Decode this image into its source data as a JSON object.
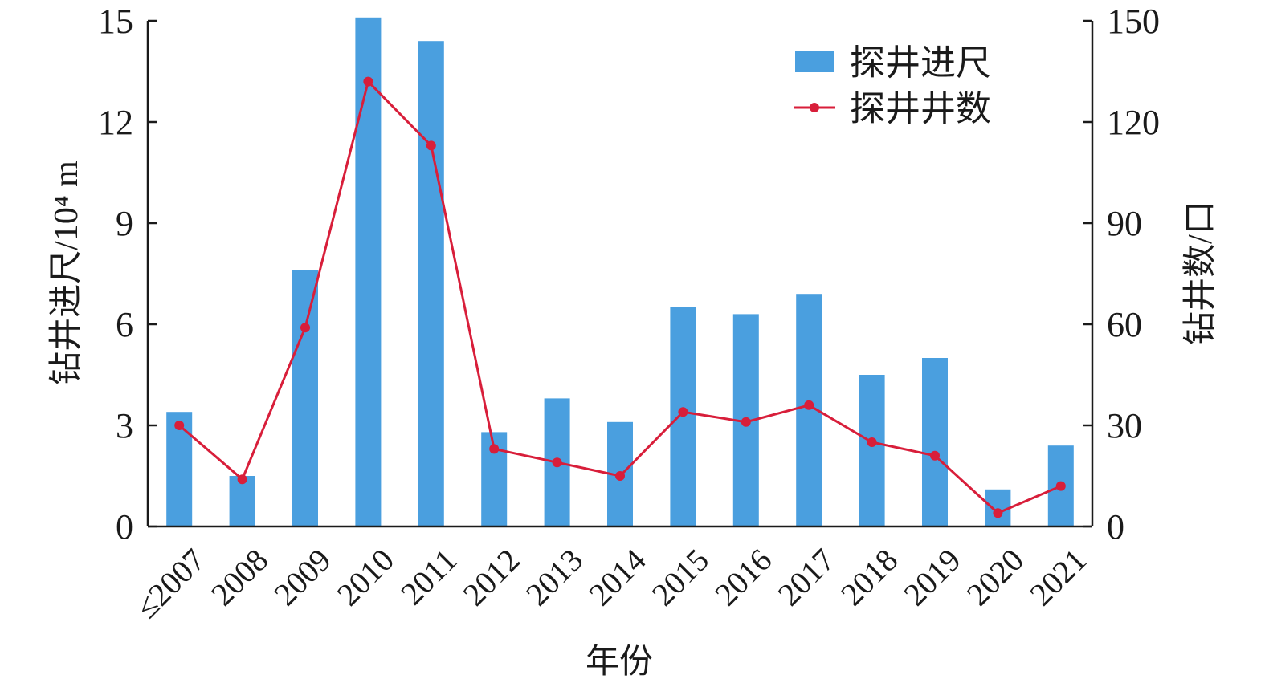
{
  "chart_data": {
    "type": "bar",
    "categories": [
      "≤2007",
      "2008",
      "2009",
      "2010",
      "2011",
      "2012",
      "2013",
      "2014",
      "2015",
      "2016",
      "2017",
      "2018",
      "2019",
      "2020",
      "2021"
    ],
    "series": [
      {
        "name": "探井进尺",
        "type": "bar",
        "axis": "left",
        "values": [
          3.4,
          1.5,
          7.6,
          15.1,
          14.4,
          2.8,
          3.8,
          3.1,
          6.5,
          6.3,
          6.9,
          4.5,
          5.0,
          1.1,
          2.4
        ]
      },
      {
        "name": "探井井数",
        "type": "line",
        "axis": "right",
        "values": [
          30,
          14,
          59,
          132,
          113,
          23,
          19,
          15,
          34,
          31,
          36,
          25,
          21,
          4,
          12
        ]
      }
    ],
    "xlabel": "年份",
    "ylabel_left": "钻井进尺/10⁴ m",
    "ylabel_right": "钻井数/口",
    "ylim_left": [
      0,
      15
    ],
    "ylim_right": [
      0,
      150
    ],
    "yticks_left": [
      "0",
      "3",
      "6",
      "9",
      "12",
      "15"
    ],
    "yticks_right": [
      "0",
      "30",
      "60",
      "90",
      "120",
      "150"
    ],
    "grid": false,
    "legend_position": "top-right",
    "colors": {
      "bar": "#4a9fdf",
      "line": "#d81e3a",
      "axis": "#1a1a1a"
    }
  }
}
